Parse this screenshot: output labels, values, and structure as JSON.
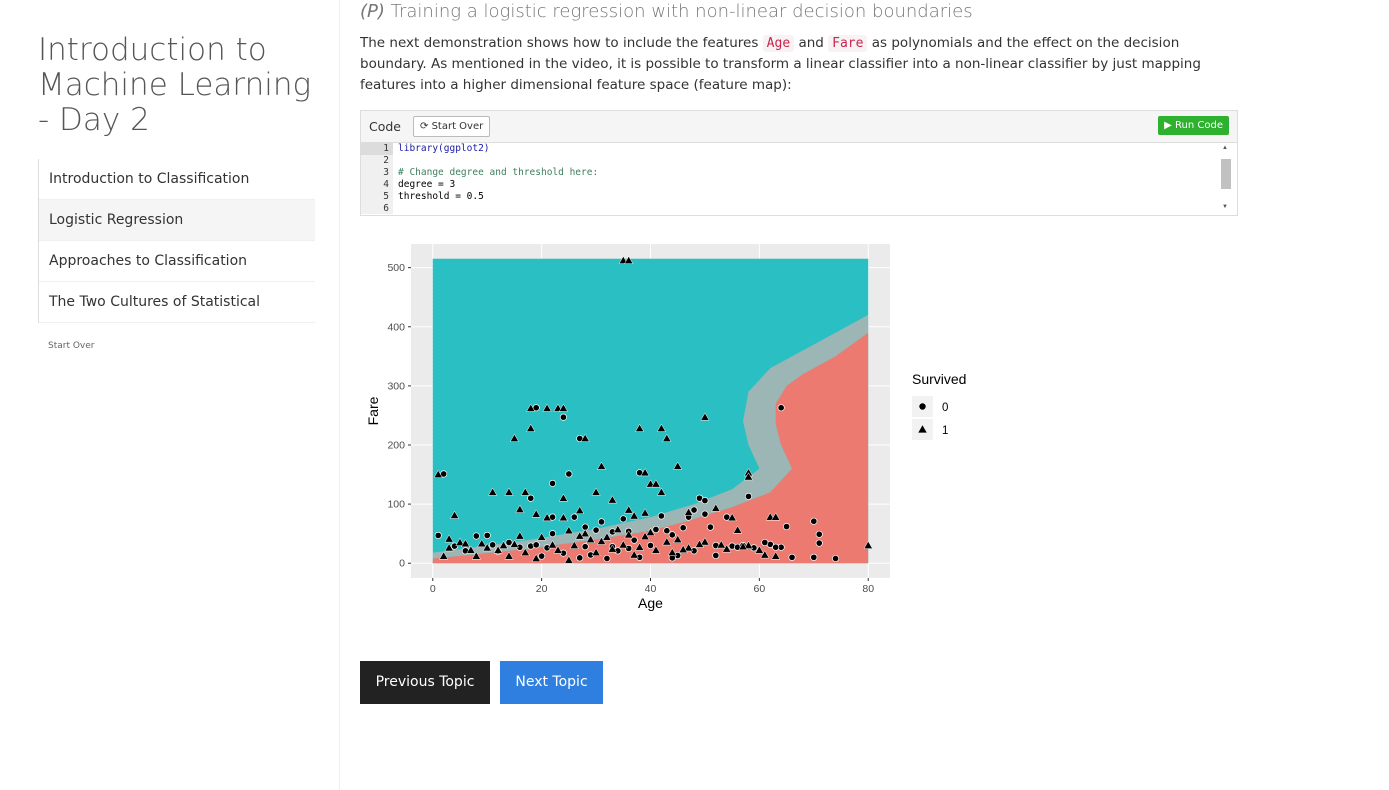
{
  "sidebar": {
    "title": "Introduction to Machine Learning - Day 2",
    "items": [
      {
        "label": "Introduction to Classification",
        "active": false
      },
      {
        "label": "Logistic Regression",
        "active": true
      },
      {
        "label": "Approaches to Classification",
        "active": false
      },
      {
        "label": "The Two Cultures of Statistical",
        "active": false
      }
    ],
    "start_over": "Start Over"
  },
  "main": {
    "heading_tag": "(P)",
    "heading_text": "Training a logistic regression with non-linear decision boundaries",
    "para_part1": "The next demonstration shows how to include the features",
    "code_age": "Age",
    "para_and": "and",
    "code_fare": "Fare",
    "para_part2": "as polynomials and the effect on the decision boundary. As mentioned in the video, it is possible to transform a linear classifier into a non-linear classifier by just mapping features into a higher dimensional feature space (feature map):"
  },
  "code_box": {
    "label": "Code",
    "start_over": "Start Over",
    "run_code": "Run Code",
    "lines": [
      {
        "n": "1",
        "text": "library(ggplot2)"
      },
      {
        "n": "2",
        "text": ""
      },
      {
        "n": "3",
        "text": "# Change degree and threshold here:"
      },
      {
        "n": "4",
        "text": "degree = 3"
      },
      {
        "n": "5",
        "text": "threshold = 0.5"
      },
      {
        "n": "6",
        "text": ""
      }
    ]
  },
  "nav": {
    "prev": "Previous Topic",
    "next": "Next Topic"
  },
  "colors": {
    "class0": "#F8766D",
    "class1": "#00BFC4",
    "panel_bg": "#EBEBEB",
    "run_green": "#2EB12E",
    "next_blue": "#2E7FE0"
  },
  "chart_data": {
    "type": "scatter",
    "xlabel": "Age",
    "ylabel": "Fare",
    "xlim": [
      -4,
      84
    ],
    "ylim": [
      -25,
      540
    ],
    "xticks": [
      0,
      20,
      40,
      60,
      80
    ],
    "yticks": [
      0,
      100,
      200,
      300,
      400,
      500
    ],
    "legend": {
      "title": "Survived",
      "position": "right",
      "entries": [
        {
          "label": "0",
          "shape": "circle"
        },
        {
          "label": "1",
          "shape": "triangle"
        }
      ]
    },
    "background": "decision boundary grid: predicted class 1 (teal) vs class 0 (salmon), salmon region at high Age / low Fare",
    "series": [
      {
        "name": "0",
        "shape": "circle",
        "points": [
          [
            19,
            263
          ],
          [
            24,
            247
          ],
          [
            27,
            211
          ],
          [
            25,
            151
          ],
          [
            38,
            153
          ],
          [
            58,
            113
          ],
          [
            64,
            263
          ],
          [
            18,
            110
          ],
          [
            22,
            135
          ],
          [
            49,
            110
          ],
          [
            50,
            106
          ],
          [
            54,
            78
          ],
          [
            47,
            78
          ],
          [
            65,
            62
          ],
          [
            70,
            71
          ],
          [
            71,
            49
          ],
          [
            71,
            34
          ],
          [
            62,
            32
          ],
          [
            64,
            27
          ],
          [
            61,
            35
          ],
          [
            66,
            10
          ],
          [
            70,
            10
          ],
          [
            74,
            8
          ],
          [
            55,
            29
          ],
          [
            2,
            151
          ],
          [
            1,
            47
          ],
          [
            8,
            46
          ],
          [
            10,
            47
          ],
          [
            11,
            31
          ],
          [
            4,
            29
          ],
          [
            22,
            50
          ],
          [
            30,
            56
          ],
          [
            33,
            53
          ],
          [
            36,
            54
          ],
          [
            43,
            55
          ],
          [
            46,
            60
          ],
          [
            51,
            61
          ],
          [
            52,
            30
          ],
          [
            56,
            27
          ],
          [
            40,
            30
          ],
          [
            33,
            28
          ],
          [
            28,
            28
          ],
          [
            18,
            29
          ],
          [
            14,
            35
          ],
          [
            16,
            27
          ],
          [
            21,
            26
          ],
          [
            24,
            17
          ],
          [
            29,
            14
          ],
          [
            34,
            21
          ],
          [
            45,
            13
          ],
          [
            48,
            21
          ],
          [
            26,
            78
          ],
          [
            35,
            75
          ],
          [
            28,
            61
          ],
          [
            22,
            78
          ],
          [
            31,
            70
          ],
          [
            41,
            57
          ],
          [
            44,
            48
          ],
          [
            48,
            90
          ],
          [
            50,
            83
          ],
          [
            42,
            80
          ],
          [
            37,
            39
          ],
          [
            57,
            30
          ],
          [
            59,
            26
          ],
          [
            63,
            27
          ],
          [
            6,
            21
          ],
          [
            12,
            20
          ],
          [
            20,
            12
          ],
          [
            27,
            9
          ],
          [
            32,
            8
          ],
          [
            38,
            10
          ],
          [
            44,
            9
          ],
          [
            52,
            13
          ],
          [
            36,
            25
          ],
          [
            19,
            31
          ]
        ]
      },
      {
        "name": "1",
        "shape": "triangle",
        "points": [
          [
            35,
            512
          ],
          [
            36,
            512
          ],
          [
            18,
            262
          ],
          [
            21,
            262
          ],
          [
            23,
            262
          ],
          [
            24,
            262
          ],
          [
            15,
            211
          ],
          [
            18,
            228
          ],
          [
            28,
            211
          ],
          [
            38,
            228
          ],
          [
            42,
            228
          ],
          [
            43,
            211
          ],
          [
            50,
            247
          ],
          [
            31,
            164
          ],
          [
            39,
            153
          ],
          [
            40,
            134
          ],
          [
            41,
            134
          ],
          [
            42,
            120
          ],
          [
            45,
            164
          ],
          [
            58,
            153
          ],
          [
            58,
            146
          ],
          [
            11,
            120
          ],
          [
            14,
            120
          ],
          [
            17,
            120
          ],
          [
            24,
            110
          ],
          [
            30,
            120
          ],
          [
            16,
            91
          ],
          [
            19,
            83
          ],
          [
            27,
            89
          ],
          [
            33,
            107
          ],
          [
            36,
            90
          ],
          [
            21,
            77
          ],
          [
            24,
            77
          ],
          [
            37,
            80
          ],
          [
            39,
            85
          ],
          [
            47,
            86
          ],
          [
            52,
            93
          ],
          [
            55,
            77
          ],
          [
            56,
            56
          ],
          [
            62,
            78
          ],
          [
            63,
            78
          ],
          [
            4,
            81
          ],
          [
            1,
            150
          ],
          [
            80,
            30
          ],
          [
            3,
            41
          ],
          [
            5,
            35
          ],
          [
            7,
            22
          ],
          [
            9,
            33
          ],
          [
            13,
            30
          ],
          [
            15,
            32
          ],
          [
            22,
            31
          ],
          [
            25,
            5
          ],
          [
            29,
            40
          ],
          [
            31,
            37
          ],
          [
            35,
            31
          ],
          [
            38,
            27
          ],
          [
            43,
            36
          ],
          [
            47,
            26
          ],
          [
            50,
            36
          ],
          [
            53,
            31
          ],
          [
            58,
            30
          ],
          [
            61,
            14
          ],
          [
            63,
            12
          ],
          [
            25,
            55
          ],
          [
            28,
            50
          ],
          [
            34,
            57
          ],
          [
            40,
            52
          ],
          [
            45,
            40
          ],
          [
            49,
            32
          ],
          [
            54,
            24
          ],
          [
            57,
            28
          ],
          [
            60,
            22
          ],
          [
            14,
            12
          ],
          [
            17,
            18
          ],
          [
            19,
            8
          ],
          [
            23,
            22
          ],
          [
            26,
            30
          ],
          [
            30,
            18
          ],
          [
            33,
            24
          ],
          [
            37,
            14
          ],
          [
            41,
            22
          ],
          [
            44,
            18
          ],
          [
            46,
            23
          ],
          [
            8,
            12
          ],
          [
            2,
            12
          ],
          [
            3,
            26
          ],
          [
            6,
            33
          ],
          [
            10,
            26
          ],
          [
            12,
            22
          ],
          [
            16,
            46
          ],
          [
            20,
            44
          ],
          [
            27,
            46
          ],
          [
            32,
            44
          ],
          [
            36,
            48
          ],
          [
            39,
            45
          ]
        ]
      }
    ]
  }
}
